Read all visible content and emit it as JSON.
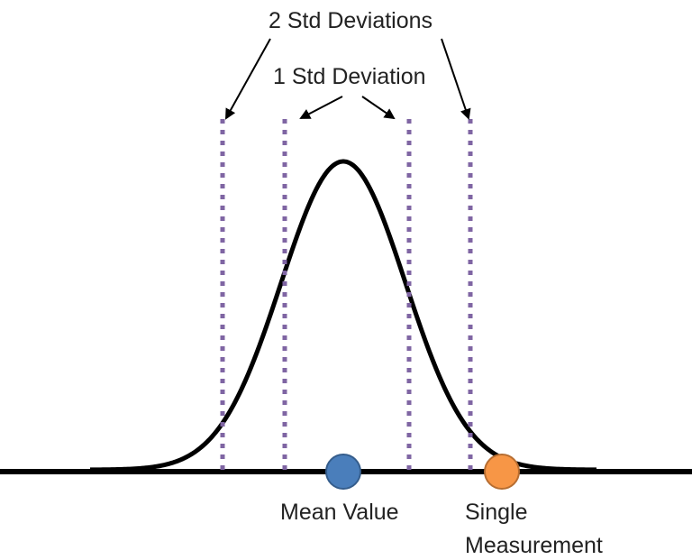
{
  "labels": {
    "two_std": "2 Std Deviations",
    "one_std": "1 Std Deviation",
    "mean": "Mean Value",
    "single_line1": "Single",
    "single_line2": "Measurement"
  },
  "colors": {
    "curve": "#000000",
    "axis": "#000000",
    "std_lines": "#7f65a3",
    "mean_dot": "#4a7ebb",
    "mean_dot_stroke": "#355d8c",
    "measurement_dot": "#f79646",
    "measurement_dot_stroke": "#b66d31",
    "arrows": "#000000"
  }
}
